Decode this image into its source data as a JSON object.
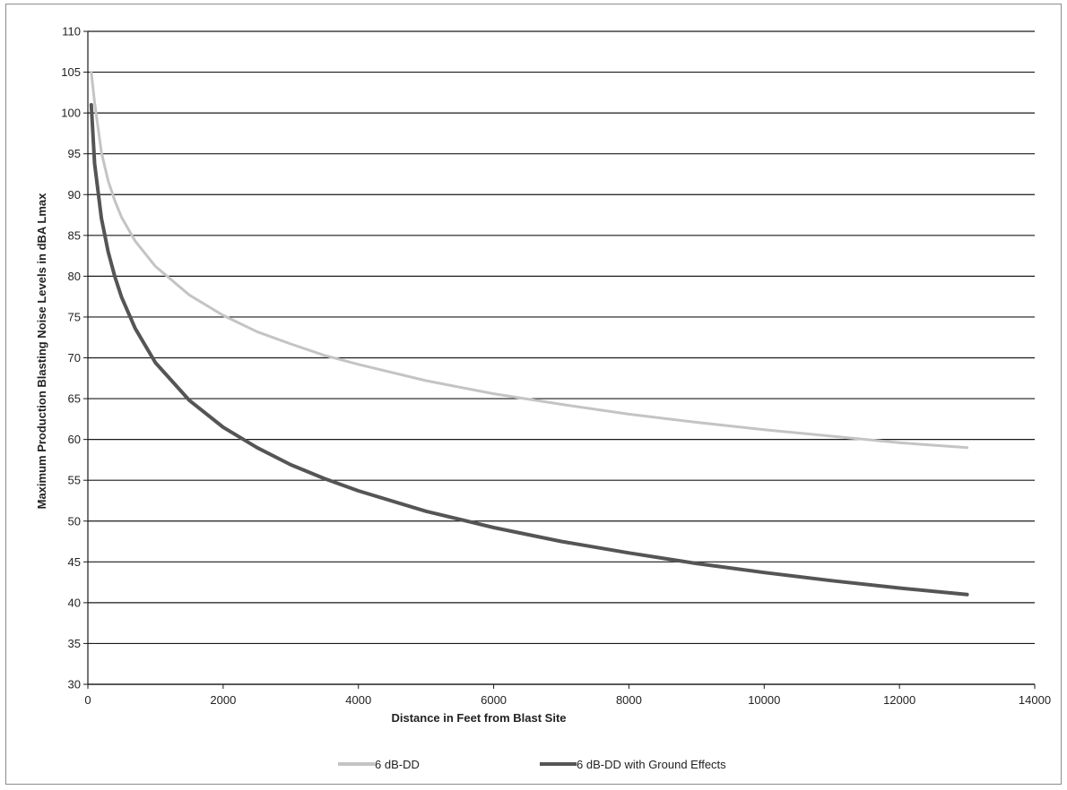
{
  "chart_data": {
    "type": "line",
    "xlabel": "Distance in Feet from Blast Site",
    "ylabel": "Maximum Production Blasting Noise Levels in dBA Lmax",
    "xlim": [
      0,
      14000
    ],
    "ylim": [
      30,
      110
    ],
    "x_ticks": [
      0,
      2000,
      4000,
      6000,
      8000,
      10000,
      12000,
      14000
    ],
    "y_ticks": [
      30,
      35,
      40,
      45,
      50,
      55,
      60,
      65,
      70,
      75,
      80,
      85,
      90,
      95,
      100,
      105,
      110
    ],
    "grid": "horizontal",
    "legend_position": "bottom",
    "series": [
      {
        "name": "6 dB-DD",
        "color": "#c4c4c4",
        "x": [
          50,
          100,
          200,
          300,
          400,
          500,
          700,
          1000,
          1500,
          2000,
          2500,
          3000,
          3500,
          4000,
          5000,
          6000,
          7000,
          8000,
          9000,
          10000,
          11000,
          12000,
          13000
        ],
        "y": [
          105,
          101.3,
          95.2,
          91.7,
          89.2,
          87.2,
          84.3,
          81.2,
          77.7,
          75.2,
          73.2,
          71.7,
          70.3,
          69.2,
          67.2,
          65.6,
          64.3,
          63.1,
          62.1,
          61.2,
          60.4,
          59.6,
          59.0
        ]
      },
      {
        "name": "6 dB-DD with Ground Effects",
        "color": "#555555",
        "x": [
          50,
          100,
          200,
          300,
          400,
          500,
          700,
          1000,
          1500,
          2000,
          2500,
          3000,
          3500,
          4000,
          5000,
          6000,
          7000,
          8000,
          9000,
          10000,
          11000,
          12000,
          13000
        ],
        "y": [
          101,
          93.8,
          87.1,
          83.0,
          79.9,
          77.4,
          73.6,
          69.4,
          64.8,
          61.5,
          59.0,
          56.9,
          55.2,
          53.7,
          51.2,
          49.2,
          47.5,
          46.1,
          44.8,
          43.7,
          42.7,
          41.8,
          41.0
        ]
      }
    ]
  }
}
